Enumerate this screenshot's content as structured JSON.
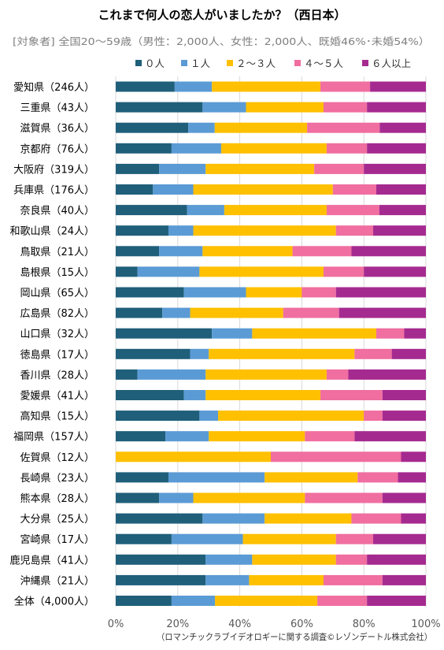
{
  "chart_data": {
    "type": "bar",
    "orientation": "horizontal",
    "stacked": "percent",
    "title": "これまで何人の恋人がいましたか？（西日本）",
    "subtitle": "[対象者] 全国20～59歳（男性：2,000人、女性：2,000人、既婚46%･未婚54%）",
    "footnote": "（ロマンチックラブイデオロギーに関する調査©レゾンデートル株式会社）",
    "legend_position": "top",
    "xlim": [
      0,
      100
    ],
    "x_ticks": [
      "0%",
      "20%",
      "40%",
      "60%",
      "80%",
      "100%"
    ],
    "grid": true,
    "categories": [
      "愛知県（246人）",
      "三重県（43人）",
      "滋賀県（36人）",
      "京都府（76人）",
      "大阪府（319人）",
      "兵庫県（176人）",
      "奈良県（40人）",
      "和歌山県（24人）",
      "鳥取県（21人）",
      "島根県（15人）",
      "岡山県（65人）",
      "広島県（82人）",
      "山口県（32人）",
      "徳島県（17人）",
      "香川県（28人）",
      "愛媛県（41人）",
      "高知県（15人）",
      "福岡県（157人）",
      "佐賀県（12人）",
      "長崎県（23人）",
      "熊本県（28人）",
      "大分県（25人）",
      "宮崎県（17人）",
      "鹿児島県（41人）",
      "沖縄県（21人）",
      "全体（4,000人）"
    ],
    "series": [
      {
        "name": "０人",
        "color": "#1f5f7a",
        "values": [
          19,
          28,
          22,
          18,
          14,
          12,
          23,
          17,
          14,
          7,
          22,
          15,
          31,
          24,
          7,
          22,
          27,
          16,
          0,
          17,
          14,
          28,
          18,
          29,
          29,
          18
        ]
      },
      {
        "name": "１人",
        "color": "#5b9bd5",
        "values": [
          12,
          14,
          8,
          16,
          15,
          13,
          12,
          8,
          14,
          20,
          20,
          9,
          13,
          6,
          22,
          7,
          6,
          14,
          0,
          31,
          11,
          20,
          23,
          15,
          14,
          14
        ]
      },
      {
        "name": "２～３人",
        "color": "#ffc000",
        "values": [
          35,
          25,
          28,
          34,
          35,
          45,
          33,
          46,
          29,
          40,
          18,
          30,
          40,
          47,
          39,
          37,
          47,
          31,
          50,
          30,
          36,
          28,
          30,
          27,
          24,
          33
        ]
      },
      {
        "name": "４～５人",
        "color": "#f06ea0",
        "values": [
          16,
          14,
          22,
          13,
          16,
          14,
          17,
          12,
          19,
          13,
          11,
          18,
          9,
          12,
          7,
          20,
          6,
          16,
          42,
          13,
          25,
          16,
          12,
          10,
          19,
          16
        ]
      },
      {
        "name": "６人以上",
        "color": "#a52a90",
        "values": [
          18,
          19,
          14,
          19,
          20,
          16,
          15,
          17,
          24,
          20,
          29,
          28,
          7,
          11,
          25,
          14,
          14,
          23,
          8,
          9,
          14,
          8,
          17,
          19,
          14,
          19
        ]
      }
    ]
  }
}
